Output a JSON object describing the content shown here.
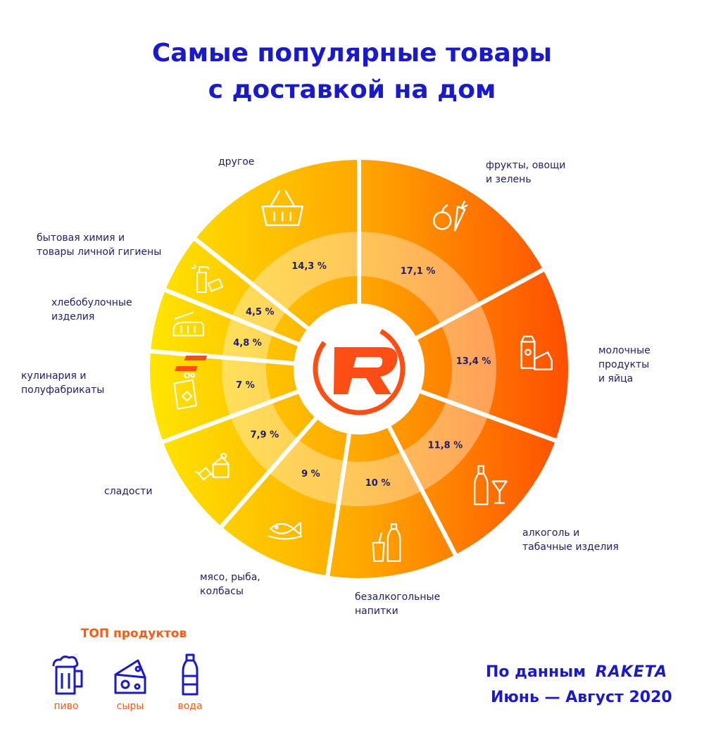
{
  "title": {
    "line1": "Самые популярные товары",
    "line2": "с доставкой на дом"
  },
  "chart_data": {
    "type": "pie",
    "categories": [
      "фрукты, овощи и зелень",
      "молочные продукты и яйца",
      "алкоголь и табачные изделия",
      "безалкогольные напитки",
      "мясо, рыба, колбасы",
      "сладости",
      "кулинария и полуфабрикаты",
      "хлебобулочные изделия",
      "бытовая химия и товары личной гигиены",
      "другое"
    ],
    "values": [
      17.1,
      13.4,
      11.8,
      10,
      9,
      7.9,
      7,
      4.8,
      4.5,
      14.3
    ],
    "value_labels": [
      "17,1 %",
      "13,4 %",
      "11,8 %",
      "10 %",
      "9 %",
      "7,9 %",
      "7 %",
      "4,8 %",
      "4,5 %",
      "14,3 %"
    ],
    "icons": [
      "apple-carrot-icon",
      "milk-cheese-icon",
      "bottle-glass-icon",
      "soda-bottle-icon",
      "fish-icon",
      "cake-candy-icon",
      "snack-bag-icon",
      "bread-icon",
      "spray-sponge-icon",
      "basket-icon"
    ],
    "colors": {
      "start": "#ffe100",
      "mid": "#ffa000",
      "end": "#ff5000",
      "label": "#1d1d6b",
      "title": "#1a1acd",
      "accent": "#ff5a14"
    }
  },
  "labels": {
    "fruits": [
      "фрукты, овощи",
      "и зелень"
    ],
    "dairy": [
      "молочные",
      "продукты",
      "и яйца"
    ],
    "alcohol": [
      "алкоголь и",
      "табачные изделия"
    ],
    "drinks": [
      "безалкогольные",
      "напитки"
    ],
    "meat": [
      "мясо, рыба,",
      "колбасы"
    ],
    "sweets": [
      "сладости"
    ],
    "cooking": [
      "кулинария и",
      "полуфабрикаты"
    ],
    "bakery": [
      "хлебобулочные",
      "изделия"
    ],
    "household": [
      "бытовая химия и",
      "товары личной гигиены"
    ],
    "other": [
      "другое"
    ]
  },
  "top_products": {
    "title": "ТОП продуктов",
    "items": [
      {
        "label": "пиво",
        "icon": "beer-mug-icon"
      },
      {
        "label": "сыры",
        "icon": "cheese-icon"
      },
      {
        "label": "вода",
        "icon": "water-bottle-icon"
      }
    ]
  },
  "source": {
    "prefix": "По данным",
    "brand": "RAKETA",
    "period": "Июнь — Август 2020"
  }
}
